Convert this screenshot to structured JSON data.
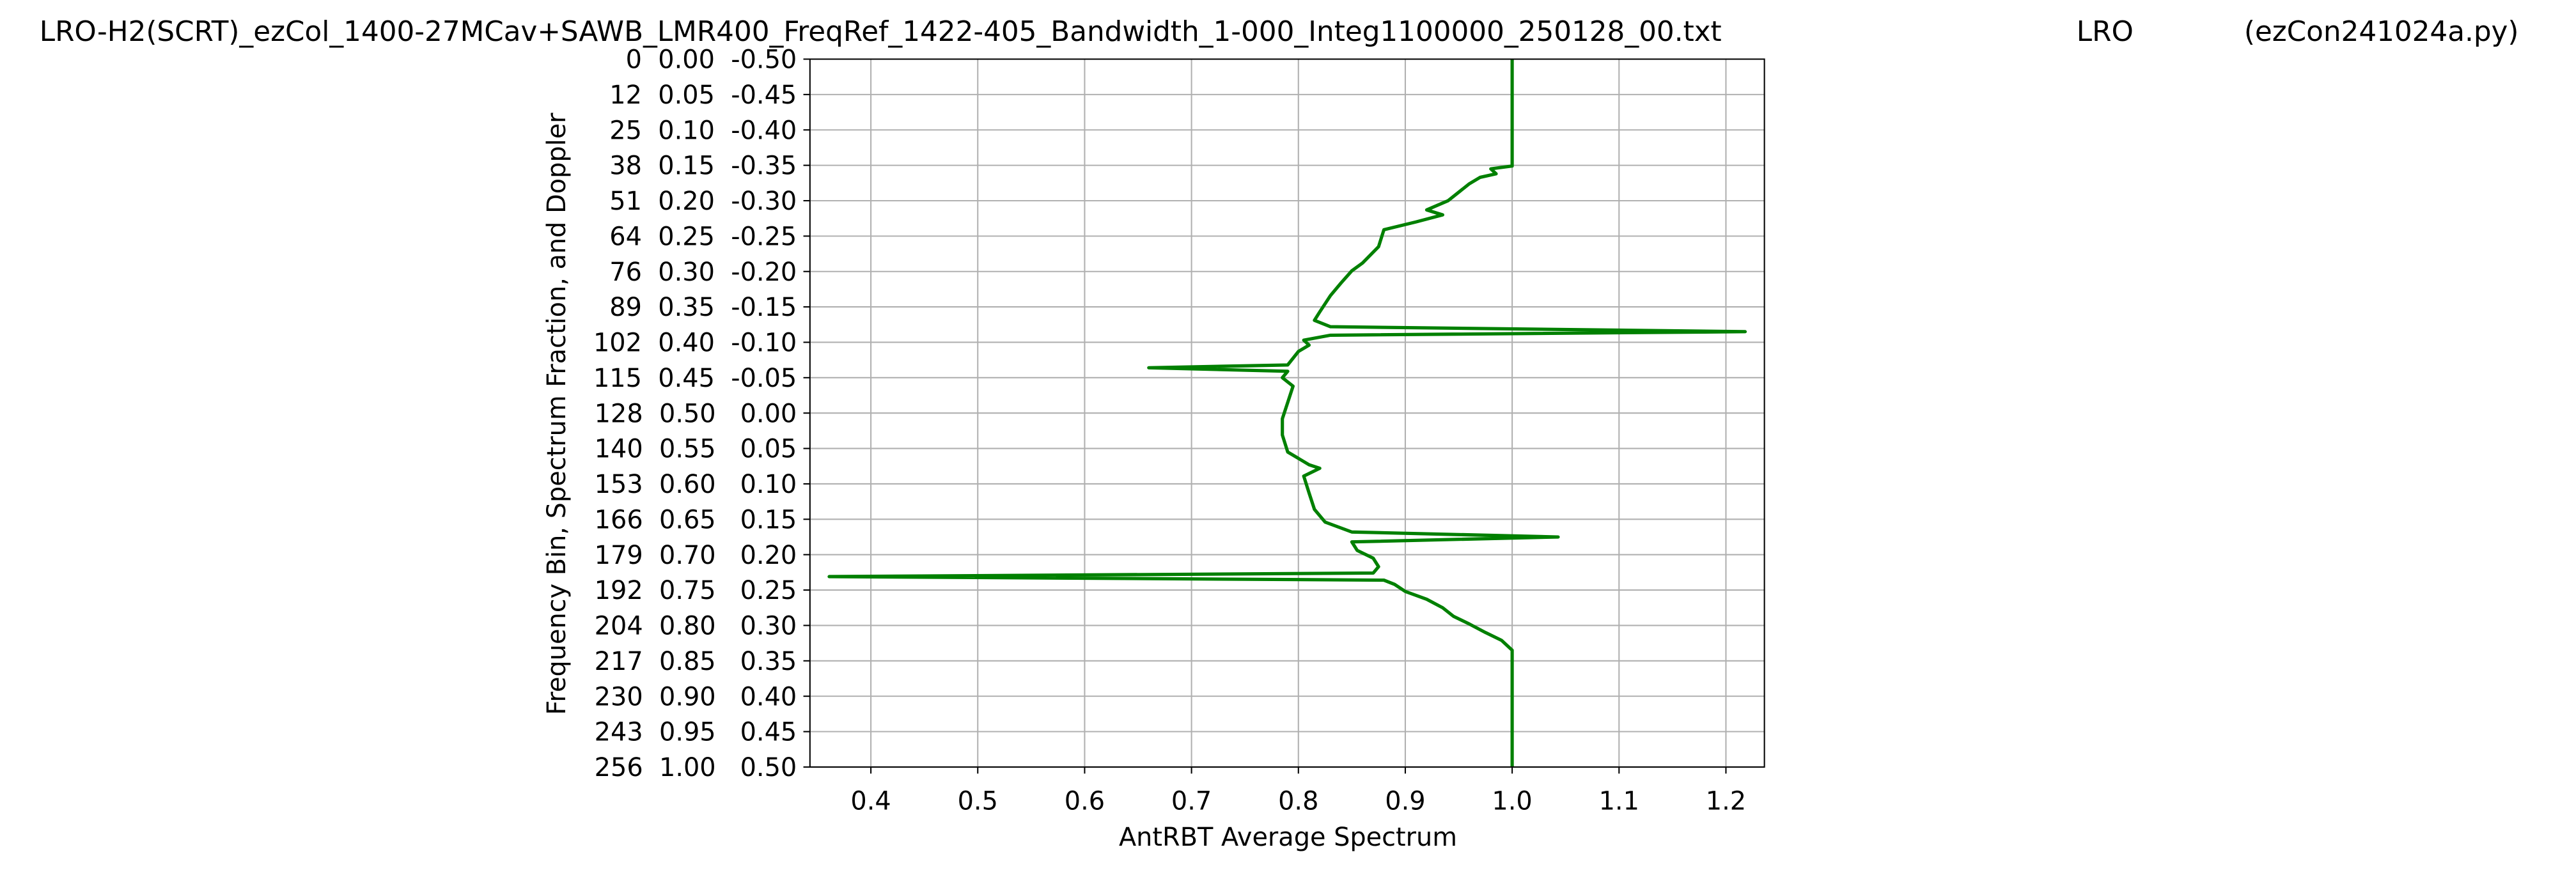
{
  "chart_data": {
    "type": "line",
    "title": "LRO-H2(SCRT)_ezCol_1400-27MCav+SAWB_LMR400_FreqRef_1422-405_Bandwidth_1-000_Integ1100000_250128_00.txt",
    "annotations": [
      "LRO",
      "(ezCon241024a.py)"
    ],
    "x_label": "AntRBT Average Spectrum",
    "y_label": "Frequency Bin, Spectrum Fraction, and Doppler",
    "xlim": [
      0.343,
      1.236
    ],
    "xticks": [
      0.4,
      0.5,
      0.6,
      0.7,
      0.8,
      0.9,
      {
        "value": 1,
        "label": "1.0"
      },
      1.1,
      1.2
    ],
    "ylim": [
      0,
      1
    ],
    "y_inverted": true,
    "yticks": [
      {
        "value": 0,
        "label": "0  0.00  -0.50"
      },
      {
        "value": 0.05,
        "label": "12  0.05  -0.45"
      },
      {
        "value": 0.1,
        "label": "25  0.10  -0.40"
      },
      {
        "value": 0.15,
        "label": "38  0.15  -0.35"
      },
      {
        "value": 0.2,
        "label": "51  0.20  -0.30"
      },
      {
        "value": 0.25,
        "label": "64  0.25  -0.25"
      },
      {
        "value": 0.3,
        "label": "76  0.30  -0.20"
      },
      {
        "value": 0.35,
        "label": "89  0.35  -0.15"
      },
      {
        "value": 0.4,
        "label": "102  0.40  -0.10"
      },
      {
        "value": 0.45,
        "label": "115  0.45  -0.05"
      },
      {
        "value": 0.5,
        "label": "128  0.50   0.00"
      },
      {
        "value": 0.55,
        "label": "140  0.55   0.05"
      },
      {
        "value": 0.6,
        "label": "153  0.60   0.10"
      },
      {
        "value": 0.65,
        "label": "166  0.65   0.15"
      },
      {
        "value": 0.7,
        "label": "179  0.70   0.20"
      },
      {
        "value": 0.75,
        "label": "192  0.75   0.25"
      },
      {
        "value": 0.8,
        "label": "204  0.80   0.30"
      },
      {
        "value": 0.85,
        "label": "217  0.85   0.35"
      },
      {
        "value": 0.9,
        "label": "230  0.90   0.40"
      },
      {
        "value": 0.95,
        "label": "243  0.95   0.45"
      },
      {
        "value": 1,
        "label": "256  1.00   0.50"
      }
    ],
    "grid": true,
    "color": "#008000",
    "y": [
      0,
      0.151,
      0.155,
      0.162,
      0.167,
      0.176,
      0.188,
      0.2,
      0.213,
      0.22,
      0.23,
      0.241,
      0.265,
      0.288,
      0.299,
      0.316,
      0.334,
      0.357,
      0.369,
      0.378,
      0.385,
      0.39,
      0.397,
      0.404,
      0.413,
      0.432,
      0.436,
      0.441,
      0.45,
      0.462,
      0.485,
      0.508,
      0.531,
      0.555,
      0.573,
      0.578,
      0.589,
      0.613,
      0.636,
      0.654,
      0.668,
      0.675,
      0.682,
      0.694,
      0.705,
      0.717,
      0.726,
      0.731,
      0.736,
      0.742,
      0.752,
      0.763,
      0.775,
      0.787,
      0.798,
      0.81,
      0.821,
      0.835,
      1
    ],
    "values": [
      1,
      1,
      0.98,
      0.985,
      0.97,
      0.96,
      0.95,
      0.94,
      0.92,
      0.935,
      0.91,
      0.88,
      0.875,
      0.86,
      0.85,
      0.84,
      0.83,
      0.82,
      0.815,
      0.83,
      1.218,
      0.83,
      0.805,
      0.81,
      0.8,
      0.79,
      0.66,
      0.79,
      0.785,
      0.795,
      0.79,
      0.785,
      0.785,
      0.79,
      0.81,
      0.82,
      0.805,
      0.81,
      0.815,
      0.825,
      0.85,
      1.043,
      0.85,
      0.855,
      0.87,
      0.875,
      0.87,
      0.361,
      0.88,
      0.89,
      0.9,
      0.92,
      0.935,
      0.945,
      0.96,
      0.975,
      0.99,
      1,
      1
    ]
  }
}
